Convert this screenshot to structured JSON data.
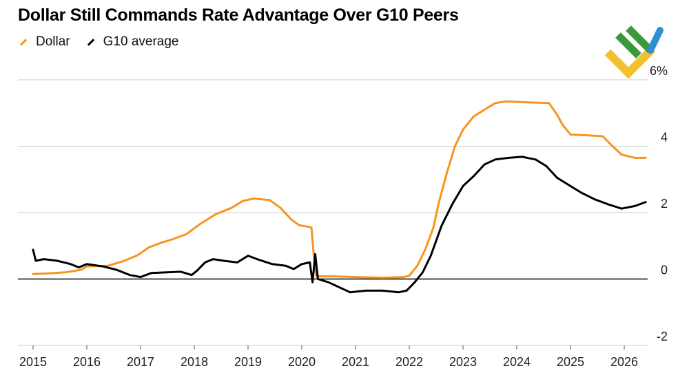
{
  "colors": {
    "dollar": "#f7941d",
    "g10": "#000000",
    "grid": "#cccccc",
    "zero": "#000000",
    "logo_green": "#3a9a3b",
    "logo_blue": "#2d8fd5",
    "logo_yellow": "#f2c12e"
  },
  "logo": {
    "icon": "brand-logo-icon"
  },
  "chart_data": {
    "type": "line",
    "title": "Dollar Still Commands Rate Advantage Over G10 Peers",
    "legend_placement": "top-left",
    "grid": "horizontal",
    "xlim": [
      2015,
      2026.75
    ],
    "ylim": [
      -2,
      6
    ],
    "x_ticks": [
      "2015",
      "2016",
      "2017",
      "2018",
      "2019",
      "2020",
      "2021",
      "2022",
      "2023",
      "2024",
      "2025",
      "2026"
    ],
    "y_ticks": [
      {
        "value": 6,
        "label": "6%"
      },
      {
        "value": 4,
        "label": "4"
      },
      {
        "value": 2,
        "label": "2"
      },
      {
        "value": 0,
        "label": "0"
      },
      {
        "value": -2,
        "label": "-2"
      }
    ],
    "series": [
      {
        "name": "Dollar",
        "color": "#f7941d",
        "points": [
          [
            2015.0,
            0.15
          ],
          [
            2015.3,
            0.17
          ],
          [
            2015.6,
            0.2
          ],
          [
            2015.9,
            0.28
          ],
          [
            2016.0,
            0.38
          ],
          [
            2016.4,
            0.4
          ],
          [
            2016.7,
            0.55
          ],
          [
            2016.95,
            0.72
          ],
          [
            2017.15,
            0.95
          ],
          [
            2017.4,
            1.1
          ],
          [
            2017.6,
            1.2
          ],
          [
            2017.85,
            1.35
          ],
          [
            2018.1,
            1.65
          ],
          [
            2018.4,
            1.95
          ],
          [
            2018.7,
            2.15
          ],
          [
            2018.9,
            2.35
          ],
          [
            2019.1,
            2.42
          ],
          [
            2019.4,
            2.38
          ],
          [
            2019.6,
            2.15
          ],
          [
            2019.8,
            1.8
          ],
          [
            2019.95,
            1.62
          ],
          [
            2020.1,
            1.58
          ],
          [
            2020.18,
            1.55
          ],
          [
            2020.23,
            0.6
          ],
          [
            2020.27,
            0.08
          ],
          [
            2020.6,
            0.08
          ],
          [
            2021.0,
            0.06
          ],
          [
            2021.5,
            0.04
          ],
          [
            2021.9,
            0.06
          ],
          [
            2022.0,
            0.1
          ],
          [
            2022.15,
            0.4
          ],
          [
            2022.3,
            0.9
          ],
          [
            2022.45,
            1.55
          ],
          [
            2022.55,
            2.3
          ],
          [
            2022.7,
            3.2
          ],
          [
            2022.85,
            4.0
          ],
          [
            2023.0,
            4.5
          ],
          [
            2023.2,
            4.9
          ],
          [
            2023.4,
            5.1
          ],
          [
            2023.6,
            5.3
          ],
          [
            2023.8,
            5.35
          ],
          [
            2024.2,
            5.32
          ],
          [
            2024.6,
            5.3
          ],
          [
            2024.75,
            4.95
          ],
          [
            2024.85,
            4.65
          ],
          [
            2025.0,
            4.35
          ],
          [
            2025.3,
            4.33
          ],
          [
            2025.6,
            4.3
          ],
          [
            2025.75,
            4.05
          ],
          [
            2025.95,
            3.75
          ],
          [
            2026.2,
            3.65
          ],
          [
            2026.4,
            3.65
          ]
        ]
      },
      {
        "name": "G10 average",
        "color": "#000000",
        "points": [
          [
            2015.0,
            0.88
          ],
          [
            2015.05,
            0.55
          ],
          [
            2015.2,
            0.6
          ],
          [
            2015.45,
            0.55
          ],
          [
            2015.7,
            0.45
          ],
          [
            2015.85,
            0.35
          ],
          [
            2016.0,
            0.45
          ],
          [
            2016.3,
            0.38
          ],
          [
            2016.55,
            0.28
          ],
          [
            2016.8,
            0.12
          ],
          [
            2017.0,
            0.06
          ],
          [
            2017.2,
            0.18
          ],
          [
            2017.5,
            0.2
          ],
          [
            2017.75,
            0.22
          ],
          [
            2017.95,
            0.12
          ],
          [
            2018.05,
            0.25
          ],
          [
            2018.2,
            0.5
          ],
          [
            2018.35,
            0.6
          ],
          [
            2018.55,
            0.55
          ],
          [
            2018.8,
            0.5
          ],
          [
            2019.0,
            0.7
          ],
          [
            2019.2,
            0.58
          ],
          [
            2019.45,
            0.45
          ],
          [
            2019.7,
            0.4
          ],
          [
            2019.85,
            0.3
          ],
          [
            2020.0,
            0.45
          ],
          [
            2020.15,
            0.5
          ],
          [
            2020.2,
            -0.1
          ],
          [
            2020.25,
            0.75
          ],
          [
            2020.3,
            0.0
          ],
          [
            2020.5,
            -0.1
          ],
          [
            2020.7,
            -0.25
          ],
          [
            2020.9,
            -0.4
          ],
          [
            2021.2,
            -0.35
          ],
          [
            2021.5,
            -0.35
          ],
          [
            2021.8,
            -0.4
          ],
          [
            2021.95,
            -0.35
          ],
          [
            2022.1,
            -0.1
          ],
          [
            2022.25,
            0.2
          ],
          [
            2022.4,
            0.7
          ],
          [
            2022.6,
            1.6
          ],
          [
            2022.8,
            2.25
          ],
          [
            2023.0,
            2.8
          ],
          [
            2023.2,
            3.1
          ],
          [
            2023.4,
            3.45
          ],
          [
            2023.6,
            3.6
          ],
          [
            2023.85,
            3.65
          ],
          [
            2024.1,
            3.68
          ],
          [
            2024.35,
            3.6
          ],
          [
            2024.55,
            3.4
          ],
          [
            2024.75,
            3.05
          ],
          [
            2024.95,
            2.85
          ],
          [
            2025.2,
            2.6
          ],
          [
            2025.45,
            2.4
          ],
          [
            2025.7,
            2.25
          ],
          [
            2025.95,
            2.12
          ],
          [
            2026.2,
            2.2
          ],
          [
            2026.4,
            2.32
          ]
        ]
      }
    ]
  }
}
